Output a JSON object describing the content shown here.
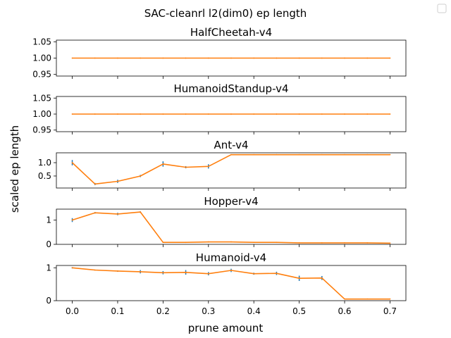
{
  "figure": {
    "suptitle": "SAC-cleanrl l2(dim0) ep length",
    "ylabel": "scaled ep length",
    "xlabel": "prune amount",
    "line_color": "#ff7f0e",
    "errorbar_color": "#1f77b4",
    "x_ticks": [
      0.0,
      0.1,
      0.2,
      0.3,
      0.4,
      0.5,
      0.6,
      0.7
    ],
    "x_tick_labels": [
      "0.0",
      "0.1",
      "0.2",
      "0.3",
      "0.4",
      "0.5",
      "0.6",
      "0.7"
    ]
  },
  "chart_data": [
    {
      "type": "line",
      "title": "HalfCheetah-v4",
      "x": [
        0.0,
        0.05,
        0.1,
        0.15,
        0.2,
        0.25,
        0.3,
        0.35,
        0.4,
        0.45,
        0.5,
        0.55,
        0.6,
        0.65,
        0.7
      ],
      "y": [
        1.0,
        1.0,
        1.0,
        1.0,
        1.0,
        1.0,
        1.0,
        1.0,
        1.0,
        1.0,
        1.0,
        1.0,
        1.0,
        1.0,
        1.0
      ],
      "err": [
        0,
        0,
        0,
        0,
        0,
        0,
        0,
        0,
        0,
        0,
        0,
        0,
        0,
        0,
        0
      ],
      "ylim": [
        0.945,
        1.055
      ],
      "yticks": [
        0.95,
        1.0,
        1.05
      ],
      "ytick_labels": [
        "0.95",
        "1.00",
        "1.05"
      ]
    },
    {
      "type": "line",
      "title": "HumanoidStandup-v4",
      "x": [
        0.0,
        0.05,
        0.1,
        0.15,
        0.2,
        0.25,
        0.3,
        0.35,
        0.4,
        0.45,
        0.5,
        0.55,
        0.6,
        0.65,
        0.7
      ],
      "y": [
        1.0,
        1.0,
        1.0,
        1.0,
        1.0,
        1.0,
        1.0,
        1.0,
        1.0,
        1.0,
        1.0,
        1.0,
        1.0,
        1.0,
        1.0
      ],
      "err": [
        0,
        0,
        0,
        0,
        0,
        0,
        0,
        0,
        0,
        0,
        0,
        0,
        0,
        0,
        0
      ],
      "ylim": [
        0.945,
        1.055
      ],
      "yticks": [
        0.95,
        1.0,
        1.05
      ],
      "ytick_labels": [
        "0.95",
        "1.00",
        "1.05"
      ]
    },
    {
      "type": "line",
      "title": "Ant-v4",
      "x": [
        0.0,
        0.05,
        0.1,
        0.15,
        0.2,
        0.25,
        0.3,
        0.35,
        0.4,
        0.45,
        0.5,
        0.55,
        0.6,
        0.65,
        0.7
      ],
      "y": [
        1.0,
        0.2,
        0.3,
        0.5,
        0.95,
        0.83,
        0.86,
        1.3,
        1.3,
        1.3,
        1.3,
        1.3,
        1.3,
        1.3,
        1.3
      ],
      "err": [
        0.1,
        0.04,
        0.06,
        0.04,
        0.1,
        0.04,
        0.08,
        0,
        0,
        0,
        0,
        0,
        0,
        0,
        0
      ],
      "ylim": [
        0.05,
        1.37
      ],
      "yticks": [
        0.5,
        1.0
      ],
      "ytick_labels": [
        "0.5",
        "1.0"
      ]
    },
    {
      "type": "line",
      "title": "Hopper-v4",
      "x": [
        0.0,
        0.05,
        0.1,
        0.15,
        0.2,
        0.25,
        0.3,
        0.35,
        0.4,
        0.45,
        0.5,
        0.55,
        0.6,
        0.65,
        0.7
      ],
      "y": [
        1.0,
        1.3,
        1.25,
        1.33,
        0.08,
        0.08,
        0.1,
        0.1,
        0.08,
        0.08,
        0.06,
        0.06,
        0.06,
        0.06,
        0.05
      ],
      "err": [
        0.08,
        0.03,
        0.05,
        0.03,
        0,
        0,
        0,
        0,
        0,
        0,
        0,
        0,
        0,
        0,
        0
      ],
      "ylim": [
        0.0,
        1.45
      ],
      "yticks": [
        0,
        1
      ],
      "ytick_labels": [
        "0",
        "1"
      ]
    },
    {
      "type": "line",
      "title": "Humanoid-v4",
      "x": [
        0.0,
        0.05,
        0.1,
        0.15,
        0.2,
        0.25,
        0.3,
        0.35,
        0.4,
        0.45,
        0.5,
        0.55,
        0.6,
        0.65,
        0.7
      ],
      "y": [
        1.0,
        0.93,
        0.9,
        0.88,
        0.85,
        0.86,
        0.82,
        0.92,
        0.82,
        0.83,
        0.68,
        0.69,
        0.05,
        0.05,
        0.05
      ],
      "err": [
        0.02,
        0.01,
        0.02,
        0.05,
        0.05,
        0.07,
        0.05,
        0.05,
        0.03,
        0.05,
        0.08,
        0.06,
        0,
        0,
        0
      ],
      "ylim": [
        0.0,
        1.07
      ],
      "yticks": [
        0,
        1
      ],
      "ytick_labels": [
        "0",
        "1"
      ]
    }
  ]
}
